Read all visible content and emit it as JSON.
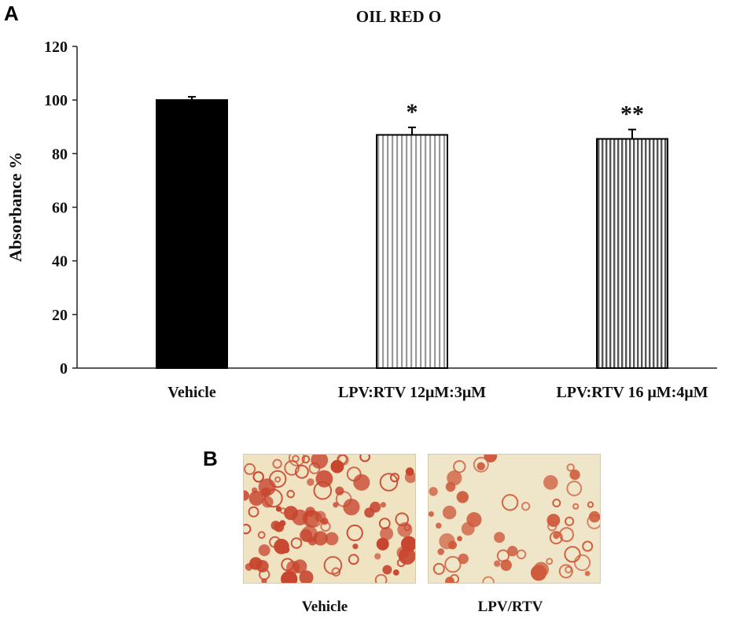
{
  "panels": {
    "a_label": "A",
    "b_label": "B"
  },
  "chart_data": {
    "type": "bar",
    "title": "OIL RED O",
    "ylabel": "Absorbance %",
    "xlabel": "",
    "ylim": [
      0,
      120
    ],
    "yticks": [
      0,
      20,
      40,
      60,
      80,
      100,
      120
    ],
    "categories": [
      "Vehicle",
      "LPV:RTV 12μM:3μM",
      "LPV:RTV 16 μM:4μM"
    ],
    "values": [
      100,
      87,
      85.5
    ],
    "errors": [
      1.2,
      2.8,
      3.5
    ],
    "significance": [
      "",
      "*",
      "**"
    ],
    "fills": [
      "solid-black",
      "light-vertical-stripes",
      "dark-vertical-stripes"
    ],
    "grid": false
  },
  "micrographs": [
    {
      "caption": "Vehicle",
      "stain": "#c8442e",
      "background": "#efe3c2"
    },
    {
      "caption": "LPV/RTV",
      "stain": "#cf5a3c",
      "background": "#efe6c9"
    }
  ]
}
